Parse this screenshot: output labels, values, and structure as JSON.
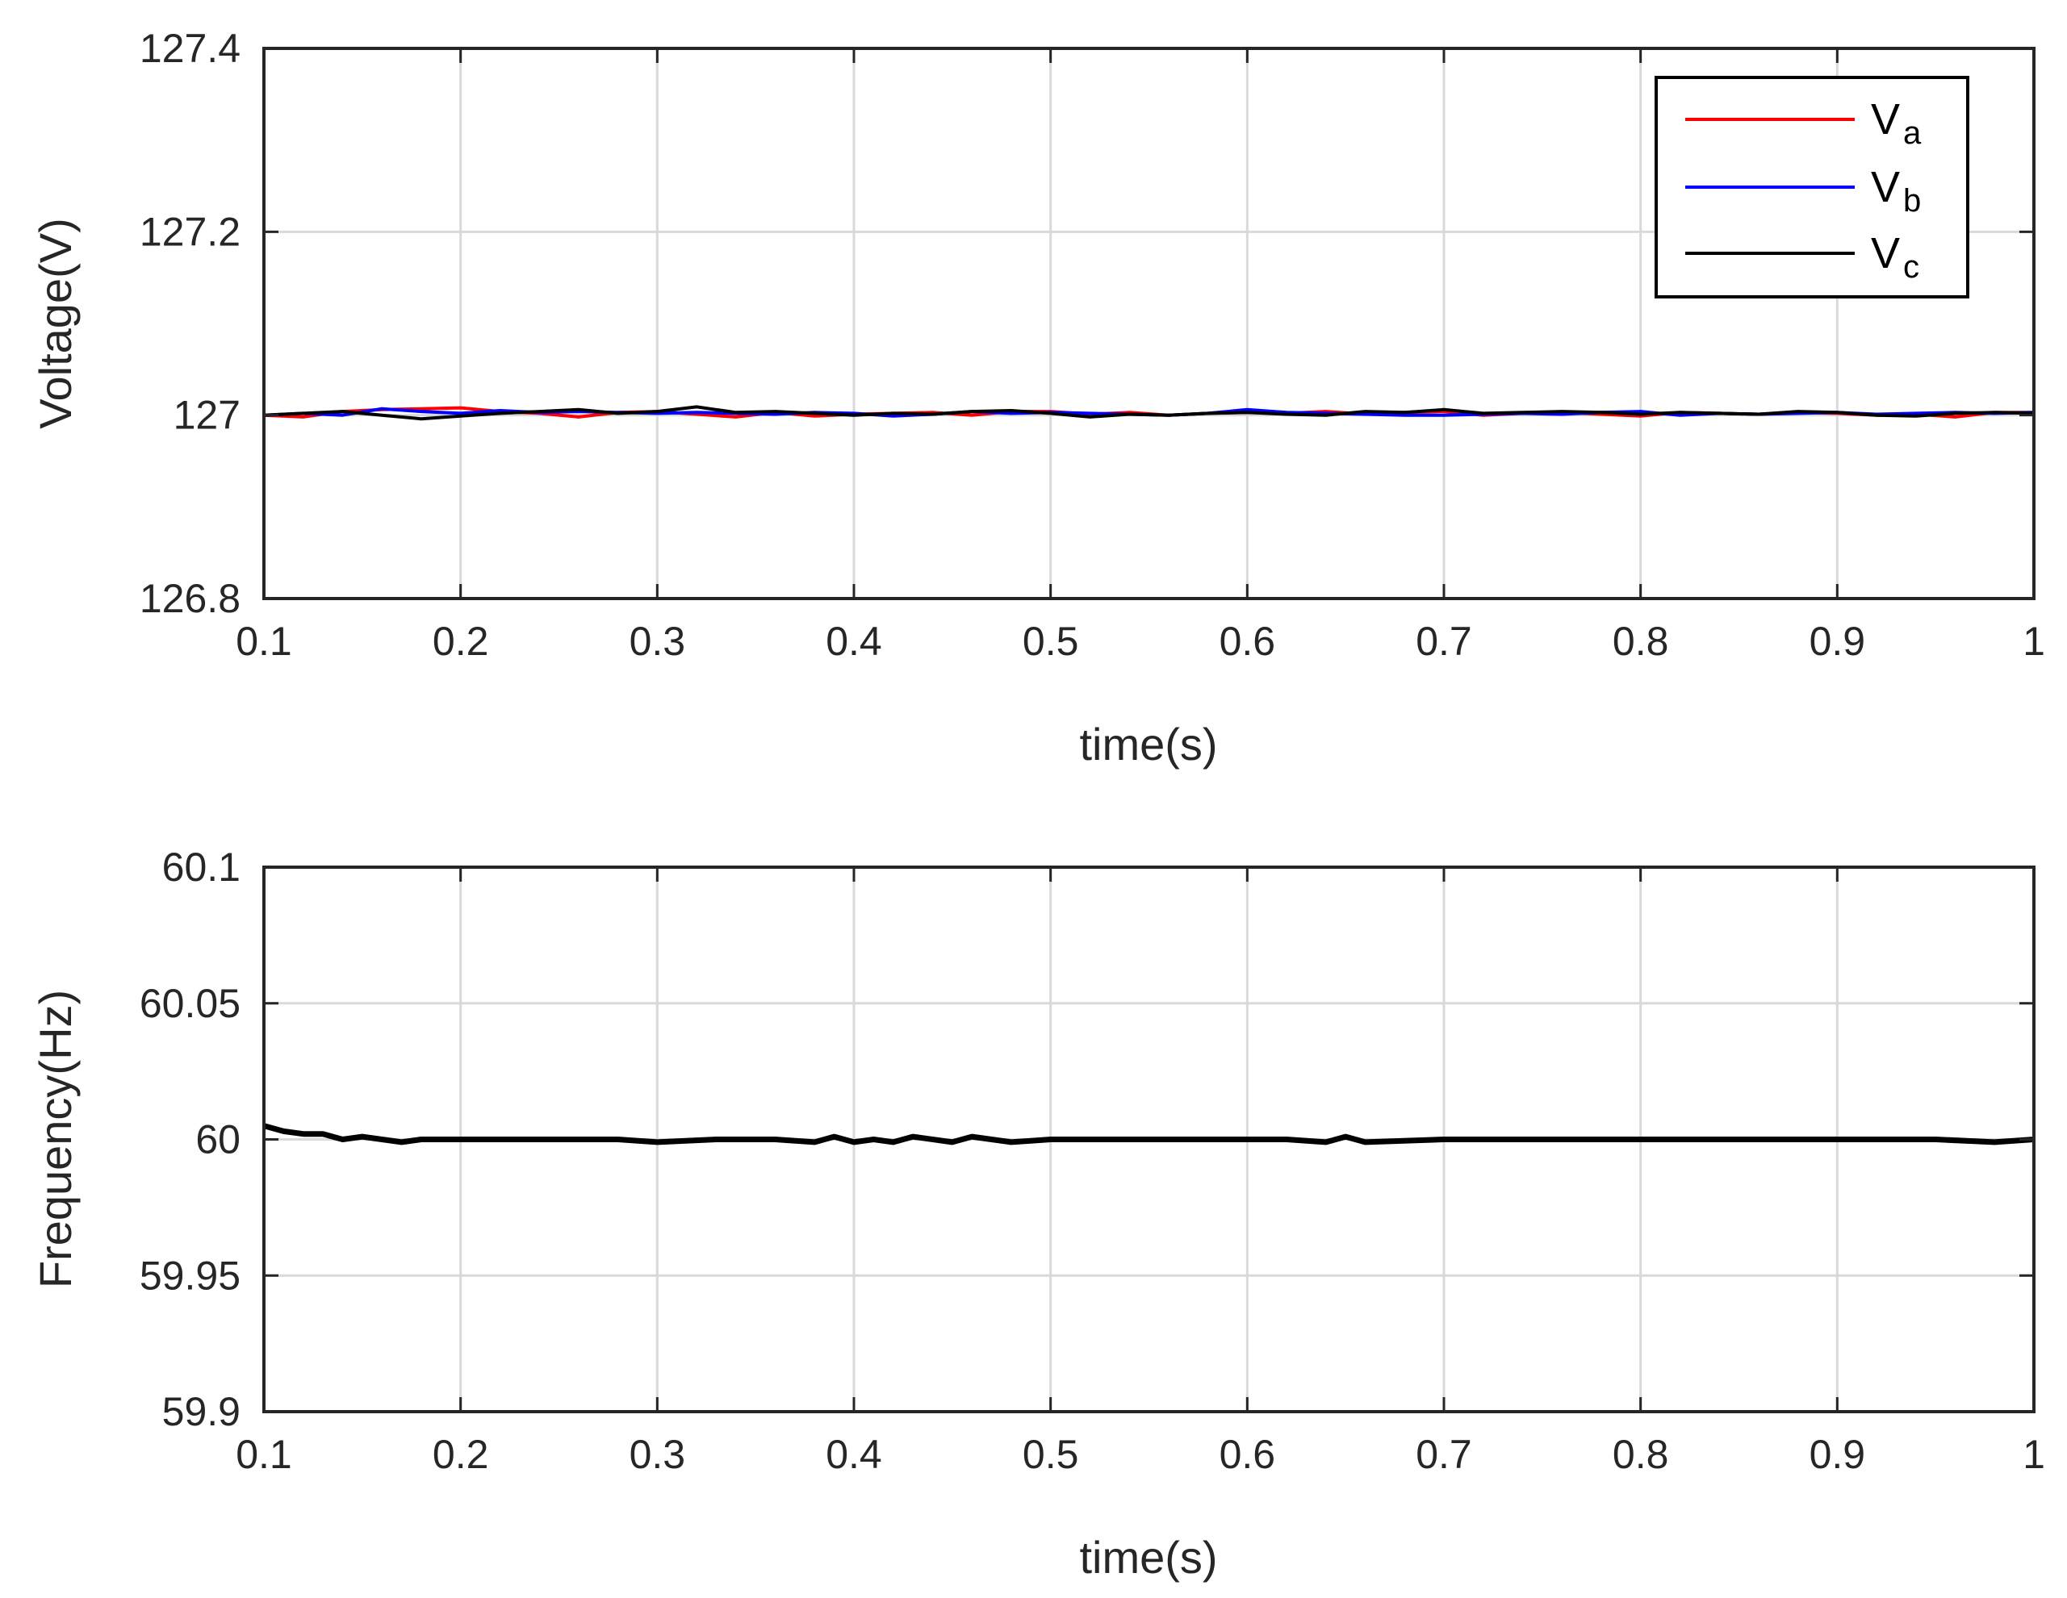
{
  "chart_data": [
    {
      "type": "line",
      "xlabel": "time(s)",
      "ylabel": "Voltage(V)",
      "xlim": [
        0.1,
        1
      ],
      "ylim": [
        126.8,
        127.4
      ],
      "xticks": [
        "0.1",
        "0.2",
        "0.3",
        "0.4",
        "0.5",
        "0.6",
        "0.7",
        "0.8",
        "0.9",
        "1"
      ],
      "yticks": [
        "126.8",
        "127",
        "127.2",
        "127.4"
      ],
      "grid": true,
      "legend_position": "top-right",
      "series": [
        {
          "name": "Va",
          "name_main": "V",
          "name_sub": "a",
          "color": "#ff0000",
          "x": [
            0.1,
            0.12,
            0.14,
            0.16,
            0.18,
            0.2,
            0.22,
            0.24,
            0.26,
            0.28,
            0.3,
            0.32,
            0.34,
            0.36,
            0.38,
            0.4,
            0.42,
            0.44,
            0.46,
            0.48,
            0.5,
            0.52,
            0.54,
            0.56,
            0.58,
            0.6,
            0.62,
            0.64,
            0.66,
            0.68,
            0.7,
            0.72,
            0.74,
            0.76,
            0.78,
            0.8,
            0.82,
            0.84,
            0.86,
            0.88,
            0.9,
            0.92,
            0.94,
            0.96,
            0.98,
            1.0
          ],
          "values": [
            127.0,
            126.998,
            127.004,
            127.006,
            127.007,
            127.008,
            127.004,
            127.002,
            126.998,
            127.003,
            127.004,
            127.001,
            126.998,
            127.003,
            126.999,
            127.001,
            127.002,
            127.003,
            127.0,
            127.004,
            127.004,
            127.001,
            127.003,
            127.0,
            127.002,
            127.003,
            127.002,
            127.004,
            127.001,
            127.003,
            127.004,
            127.0,
            127.002,
            127.003,
            127.001,
            126.999,
            127.003,
            127.002,
            127.001,
            127.003,
            127.002,
            127.0,
            127.001,
            126.998,
            127.003,
            127.003
          ]
        },
        {
          "name": "Vb",
          "name_main": "V",
          "name_sub": "b",
          "color": "#0000ff",
          "x": [
            0.1,
            0.12,
            0.14,
            0.16,
            0.18,
            0.2,
            0.22,
            0.24,
            0.26,
            0.28,
            0.3,
            0.32,
            0.34,
            0.36,
            0.38,
            0.4,
            0.42,
            0.44,
            0.46,
            0.48,
            0.5,
            0.52,
            0.54,
            0.56,
            0.58,
            0.6,
            0.62,
            0.64,
            0.66,
            0.68,
            0.7,
            0.72,
            0.74,
            0.76,
            0.78,
            0.8,
            0.82,
            0.84,
            0.86,
            0.88,
            0.9,
            0.92,
            0.94,
            0.96,
            0.98,
            1.0
          ],
          "values": [
            127.0,
            127.002,
            127.0,
            127.007,
            127.004,
            127.002,
            127.005,
            127.003,
            127.004,
            127.003,
            127.002,
            127.003,
            127.002,
            127.001,
            127.003,
            127.002,
            126.999,
            127.001,
            127.004,
            127.002,
            127.003,
            127.002,
            127.001,
            127.0,
            127.002,
            127.006,
            127.003,
            127.002,
            127.001,
            127.0,
            127.0,
            127.001,
            127.002,
            127.001,
            127.003,
            127.004,
            127.0,
            127.002,
            127.001,
            127.002,
            127.003,
            127.001,
            127.002,
            127.003,
            127.002,
            127.003
          ]
        },
        {
          "name": "Vc",
          "name_main": "V",
          "name_sub": "c",
          "color": "#000000",
          "x": [
            0.1,
            0.12,
            0.14,
            0.16,
            0.18,
            0.2,
            0.22,
            0.24,
            0.26,
            0.28,
            0.3,
            0.32,
            0.34,
            0.36,
            0.38,
            0.4,
            0.42,
            0.44,
            0.46,
            0.48,
            0.5,
            0.52,
            0.54,
            0.56,
            0.58,
            0.6,
            0.62,
            0.64,
            0.66,
            0.68,
            0.7,
            0.72,
            0.74,
            0.76,
            0.78,
            0.8,
            0.82,
            0.84,
            0.86,
            0.88,
            0.9,
            0.92,
            0.94,
            0.96,
            0.98,
            1.0
          ],
          "values": [
            127.0,
            127.002,
            127.004,
            127.0,
            126.996,
            126.999,
            127.002,
            127.004,
            127.006,
            127.002,
            127.004,
            127.009,
            127.003,
            127.004,
            127.002,
            127.0,
            127.002,
            127.001,
            127.004,
            127.005,
            127.002,
            126.998,
            127.001,
            127.0,
            127.002,
            127.003,
            127.001,
            127.0,
            127.004,
            127.003,
            127.006,
            127.002,
            127.003,
            127.004,
            127.003,
            127.001,
            127.003,
            127.002,
            127.001,
            127.004,
            127.003,
            127.0,
            126.999,
            127.002,
            127.003,
            127.002
          ]
        }
      ]
    },
    {
      "type": "line",
      "xlabel": "time(s)",
      "ylabel": "Frequency(Hz)",
      "xlim": [
        0.1,
        1
      ],
      "ylim": [
        59.9,
        60.1
      ],
      "xticks": [
        "0.1",
        "0.2",
        "0.3",
        "0.4",
        "0.5",
        "0.6",
        "0.7",
        "0.8",
        "0.9",
        "1"
      ],
      "yticks": [
        "59.9",
        "59.95",
        "60",
        "60.05",
        "60.1"
      ],
      "grid": true,
      "series": [
        {
          "color": "#000000",
          "x": [
            0.1,
            0.11,
            0.12,
            0.13,
            0.14,
            0.15,
            0.16,
            0.17,
            0.18,
            0.2,
            0.22,
            0.25,
            0.28,
            0.3,
            0.33,
            0.36,
            0.38,
            0.39,
            0.4,
            0.41,
            0.42,
            0.43,
            0.45,
            0.46,
            0.48,
            0.5,
            0.52,
            0.55,
            0.58,
            0.6,
            0.62,
            0.64,
            0.65,
            0.66,
            0.7,
            0.75,
            0.8,
            0.85,
            0.9,
            0.95,
            0.98,
            1.0
          ],
          "values": [
            60.005,
            60.003,
            60.002,
            60.002,
            60.0,
            60.001,
            60.0,
            59.999,
            60.0,
            60.0,
            60.0,
            60.0,
            60.0,
            59.999,
            60.0,
            60.0,
            59.999,
            60.001,
            59.999,
            60.0,
            59.999,
            60.001,
            59.999,
            60.001,
            59.999,
            60.0,
            60.0,
            60.0,
            60.0,
            60.0,
            60.0,
            59.999,
            60.001,
            59.999,
            60.0,
            60.0,
            60.0,
            60.0,
            60.0,
            60.0,
            59.999,
            60.0
          ]
        }
      ]
    }
  ]
}
